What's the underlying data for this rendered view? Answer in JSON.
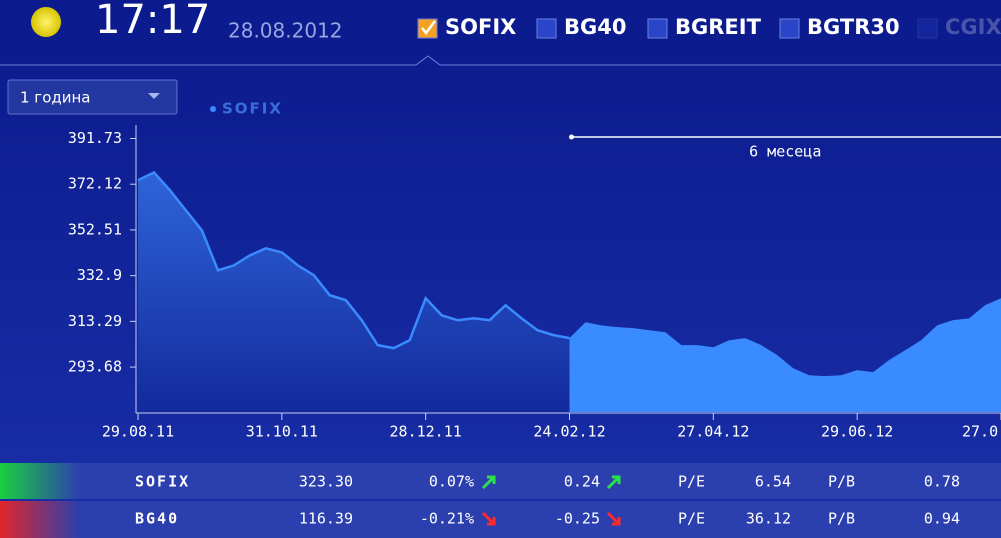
{
  "header": {
    "time": "17:17",
    "date": "28.08.2012",
    "tabs": [
      {
        "label": "SOFIX",
        "checked": true,
        "enabled": true
      },
      {
        "label": "BG40",
        "checked": false,
        "enabled": true
      },
      {
        "label": "BGREIT",
        "checked": false,
        "enabled": true
      },
      {
        "label": "BGTR30",
        "checked": false,
        "enabled": true
      },
      {
        "label": "CGIX",
        "checked": false,
        "enabled": false
      }
    ]
  },
  "period_select": "1 година",
  "chart_data": {
    "type": "area",
    "annotation": "6 месеца",
    "categories": [
      "29.08.11",
      null,
      null,
      null,
      null,
      null,
      null,
      null,
      null,
      "31.10.11",
      null,
      null,
      null,
      null,
      null,
      null,
      null,
      null,
      "28.12.11",
      null,
      null,
      null,
      null,
      null,
      null,
      null,
      null,
      "24.02.12",
      null,
      null,
      null,
      null,
      null,
      null,
      null,
      null,
      "27.04.12",
      null,
      null,
      null,
      null,
      null,
      null,
      null,
      null,
      "29.06.12",
      null,
      null,
      null,
      null,
      null,
      null,
      null,
      null,
      "27.0"
    ],
    "series": [
      {
        "name": "SOFIX",
        "color": "#3a8bff",
        "values": [
          373.8,
          377.2,
          369.5,
          360.9,
          352.3,
          335.2,
          337.3,
          341.6,
          344.6,
          342.9,
          337.3,
          333.1,
          324.5,
          322.4,
          313.8,
          303.1,
          301.8,
          305.2,
          323.2,
          315.9,
          313.8,
          314.6,
          313.8,
          320.2,
          314.6,
          309.5,
          307.4,
          306.1,
          312.9,
          311.6,
          310.8,
          310.4,
          309.5,
          308.6,
          303.1,
          303.1,
          302.2,
          305.2,
          306.1,
          303.1,
          298.8,
          293.2,
          290.2,
          289.8,
          290.2,
          292.4,
          291.5,
          296.7,
          300.9,
          305.2,
          311.6,
          313.8,
          314.6,
          320.2,
          323.2
        ]
      }
    ],
    "ylim": [
      274.42,
      397.3
    ],
    "yticks": [
      293.68,
      313.29,
      332.9,
      352.51,
      372.12,
      391.73
    ]
  },
  "table": {
    "rows": [
      {
        "name": "SOFIX",
        "value": "323.30",
        "change_pct": "0.07%",
        "change": "0.24",
        "trend": "up",
        "pe_label": "P/E",
        "pe": "6.54",
        "pb_label": "P/B",
        "pb": "0.78"
      },
      {
        "name": "BG40",
        "value": "116.39",
        "change_pct": "-0.21%",
        "change": "-0.25",
        "trend": "down",
        "pe_label": "P/E",
        "pe": "36.12",
        "pb_label": "P/B",
        "pb": "0.94"
      }
    ]
  }
}
